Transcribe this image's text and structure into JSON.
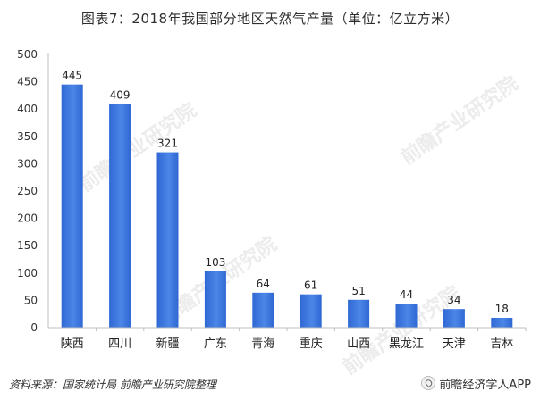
{
  "title": "图表7：2018年我国部分地区天然气产量（单位：亿立方米）",
  "footer": {
    "source": "资料来源：国家统计局 前瞻产业研究院整理",
    "brand": "前瞻经济学人APP"
  },
  "colors": {
    "bar": "#3a74dc",
    "bar_light": "#6b9ae8",
    "axis": "#bfbfbf"
  },
  "chart_data": {
    "type": "bar",
    "title": "图表7：2018年我国部分地区天然气产量（单位：亿立方米）",
    "categories": [
      "陕西",
      "四川",
      "新疆",
      "广东",
      "青海",
      "重庆",
      "山西",
      "黑龙江",
      "天津",
      "吉林"
    ],
    "values": [
      445,
      409,
      321,
      103,
      64,
      61,
      51,
      44,
      34,
      18
    ],
    "yticks": [
      0,
      50,
      100,
      150,
      200,
      250,
      300,
      350,
      400,
      450,
      500
    ],
    "ylim": [
      0,
      500
    ],
    "grid": false,
    "legend": "none"
  }
}
